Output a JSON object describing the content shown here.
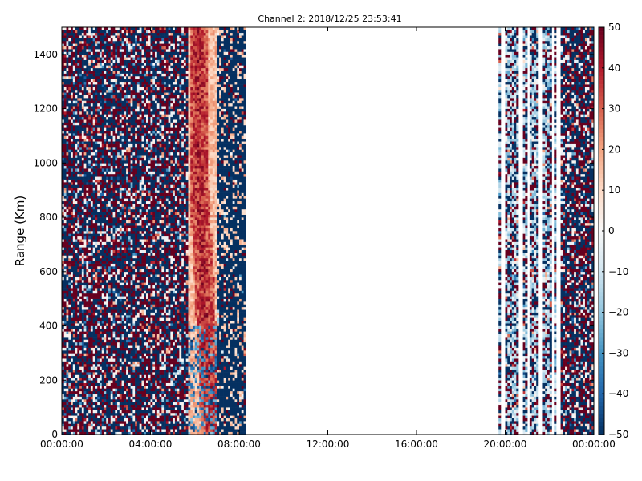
{
  "chart_data": {
    "type": "heatmap",
    "title": "Channel 2: 2018/12/25 23:53:41",
    "xlabel": "",
    "ylabel": "Range (Km)",
    "xlim": [
      "00:00:00",
      "24:00:00"
    ],
    "ylim": [
      0,
      1500
    ],
    "x_tick_labels": [
      "00:00:00",
      "04:00:00",
      "08:00:00",
      "12:00:00",
      "16:00:00",
      "20:00:00",
      "00:00:00"
    ],
    "y_tick_labels": [
      "0",
      "200",
      "400",
      "600",
      "800",
      "1000",
      "1200",
      "1400"
    ],
    "colorbar": {
      "min": -50,
      "max": 50,
      "tick_labels": [
        "50",
        "40",
        "30",
        "20",
        "10",
        "0",
        "−10",
        "−20",
        "−30",
        "−40",
        "−50"
      ],
      "colormap": "RdBu_r",
      "colors": {
        "low": "#053061",
        "mid": "#f7f7f7",
        "high": "#67001f"
      }
    },
    "data_segments": [
      {
        "start": "00:00:00",
        "end": "05:45:00",
        "pattern": "random noise, +/-50"
      },
      {
        "start": "05:45:00",
        "end": "07:00:00",
        "pattern": "strong positive band (~+20 to +50), weakening below 400 km"
      },
      {
        "start": "07:00:00",
        "end": "08:20:00",
        "pattern": "mostly negative noise (~-50) with light patches"
      },
      {
        "start": "08:20:00",
        "end": "19:45:00",
        "pattern": "no data"
      },
      {
        "start": "19:45:00",
        "end": "22:30:00",
        "pattern": "intermittent vertical stripes, mixed values"
      },
      {
        "start": "22:30:00",
        "end": "24:00:00",
        "pattern": "random noise, +/-50"
      }
    ],
    "grid": false
  }
}
